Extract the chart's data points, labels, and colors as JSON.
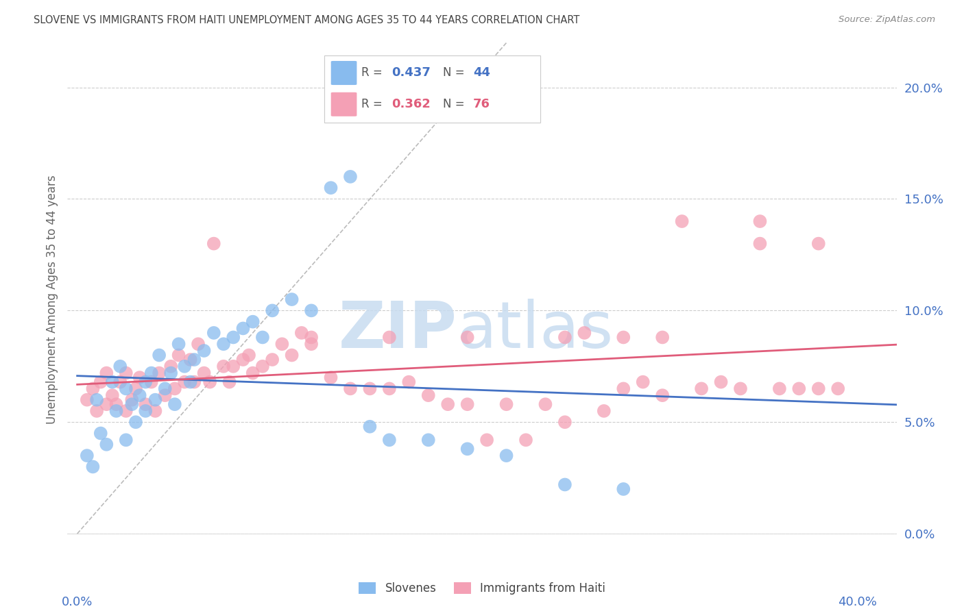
{
  "title": "SLOVENE VS IMMIGRANTS FROM HAITI UNEMPLOYMENT AMONG AGES 35 TO 44 YEARS CORRELATION CHART",
  "source": "Source: ZipAtlas.com",
  "ylabel": "Unemployment Among Ages 35 to 44 years",
  "ylabel_ticks": [
    0.0,
    0.05,
    0.1,
    0.15,
    0.2
  ],
  "xlim": [
    -0.005,
    0.42
  ],
  "ylim": [
    -0.01,
    0.22
  ],
  "slovene_R": 0.437,
  "slovene_N": 44,
  "haiti_R": 0.362,
  "haiti_N": 76,
  "slovene_color": "#88BBEE",
  "haiti_color": "#F4A0B5",
  "slovene_line_color": "#4472C4",
  "haiti_line_color": "#E05C7A",
  "ref_line_color": "#BBBBBB",
  "background_color": "#FFFFFF",
  "grid_color": "#CCCCCC",
  "axis_label_color": "#4472C4",
  "title_color": "#444444",
  "legend_label_slovene": "Slovenes",
  "legend_label_haiti": "Immigrants from Haiti",
  "slovene_x": [
    0.005,
    0.008,
    0.01,
    0.012,
    0.015,
    0.018,
    0.02,
    0.022,
    0.025,
    0.025,
    0.028,
    0.03,
    0.032,
    0.035,
    0.035,
    0.038,
    0.04,
    0.042,
    0.045,
    0.048,
    0.05,
    0.052,
    0.055,
    0.058,
    0.06,
    0.065,
    0.07,
    0.075,
    0.08,
    0.085,
    0.09,
    0.095,
    0.1,
    0.11,
    0.12,
    0.13,
    0.14,
    0.15,
    0.16,
    0.18,
    0.2,
    0.22,
    0.25,
    0.28
  ],
  "slovene_y": [
    0.035,
    0.03,
    0.06,
    0.045,
    0.04,
    0.068,
    0.055,
    0.075,
    0.042,
    0.065,
    0.058,
    0.05,
    0.062,
    0.068,
    0.055,
    0.072,
    0.06,
    0.08,
    0.065,
    0.072,
    0.058,
    0.085,
    0.075,
    0.068,
    0.078,
    0.082,
    0.09,
    0.085,
    0.088,
    0.092,
    0.095,
    0.088,
    0.1,
    0.105,
    0.1,
    0.155,
    0.16,
    0.048,
    0.042,
    0.042,
    0.038,
    0.035,
    0.022,
    0.02
  ],
  "haiti_x": [
    0.005,
    0.008,
    0.01,
    0.012,
    0.015,
    0.015,
    0.018,
    0.02,
    0.022,
    0.025,
    0.025,
    0.028,
    0.03,
    0.032,
    0.035,
    0.038,
    0.04,
    0.042,
    0.045,
    0.048,
    0.05,
    0.052,
    0.055,
    0.058,
    0.06,
    0.062,
    0.065,
    0.068,
    0.07,
    0.075,
    0.078,
    0.08,
    0.085,
    0.088,
    0.09,
    0.095,
    0.1,
    0.105,
    0.11,
    0.115,
    0.12,
    0.13,
    0.14,
    0.15,
    0.16,
    0.17,
    0.18,
    0.19,
    0.2,
    0.21,
    0.22,
    0.23,
    0.24,
    0.25,
    0.26,
    0.27,
    0.28,
    0.29,
    0.3,
    0.31,
    0.32,
    0.33,
    0.34,
    0.35,
    0.36,
    0.37,
    0.38,
    0.39,
    0.35,
    0.38,
    0.3,
    0.28,
    0.25,
    0.2,
    0.16,
    0.12
  ],
  "haiti_y": [
    0.06,
    0.065,
    0.055,
    0.068,
    0.058,
    0.072,
    0.062,
    0.058,
    0.068,
    0.055,
    0.072,
    0.06,
    0.065,
    0.07,
    0.058,
    0.068,
    0.055,
    0.072,
    0.062,
    0.075,
    0.065,
    0.08,
    0.068,
    0.078,
    0.068,
    0.085,
    0.072,
    0.068,
    0.13,
    0.075,
    0.068,
    0.075,
    0.078,
    0.08,
    0.072,
    0.075,
    0.078,
    0.085,
    0.08,
    0.09,
    0.085,
    0.07,
    0.065,
    0.065,
    0.065,
    0.068,
    0.062,
    0.058,
    0.058,
    0.042,
    0.058,
    0.042,
    0.058,
    0.05,
    0.09,
    0.055,
    0.065,
    0.068,
    0.062,
    0.14,
    0.065,
    0.068,
    0.065,
    0.13,
    0.065,
    0.065,
    0.065,
    0.065,
    0.14,
    0.13,
    0.088,
    0.088,
    0.088,
    0.088,
    0.088,
    0.088
  ],
  "watermark_zip": "ZIP",
  "watermark_atlas": "atlas",
  "watermark_color": "#C8DCF0"
}
